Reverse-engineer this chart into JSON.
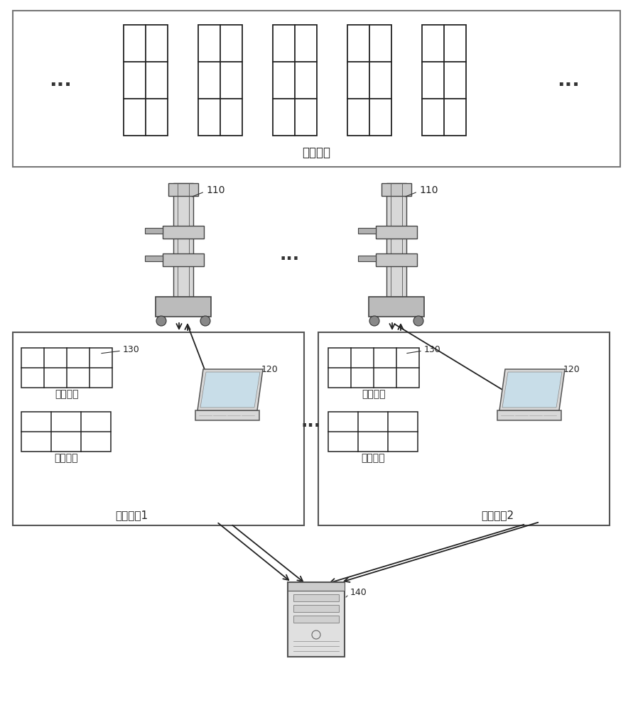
{
  "bg_color": "#ffffff",
  "text_color": "#000000",
  "title": "仓库货架",
  "label_110": "110",
  "label_120": "120",
  "label_130": "130",
  "label_140": "140",
  "op1_label": "操作区块1",
  "op2_label": "操作区块2",
  "cache_label": "缓存货架",
  "order_label": "订单货架",
  "dots": "..."
}
